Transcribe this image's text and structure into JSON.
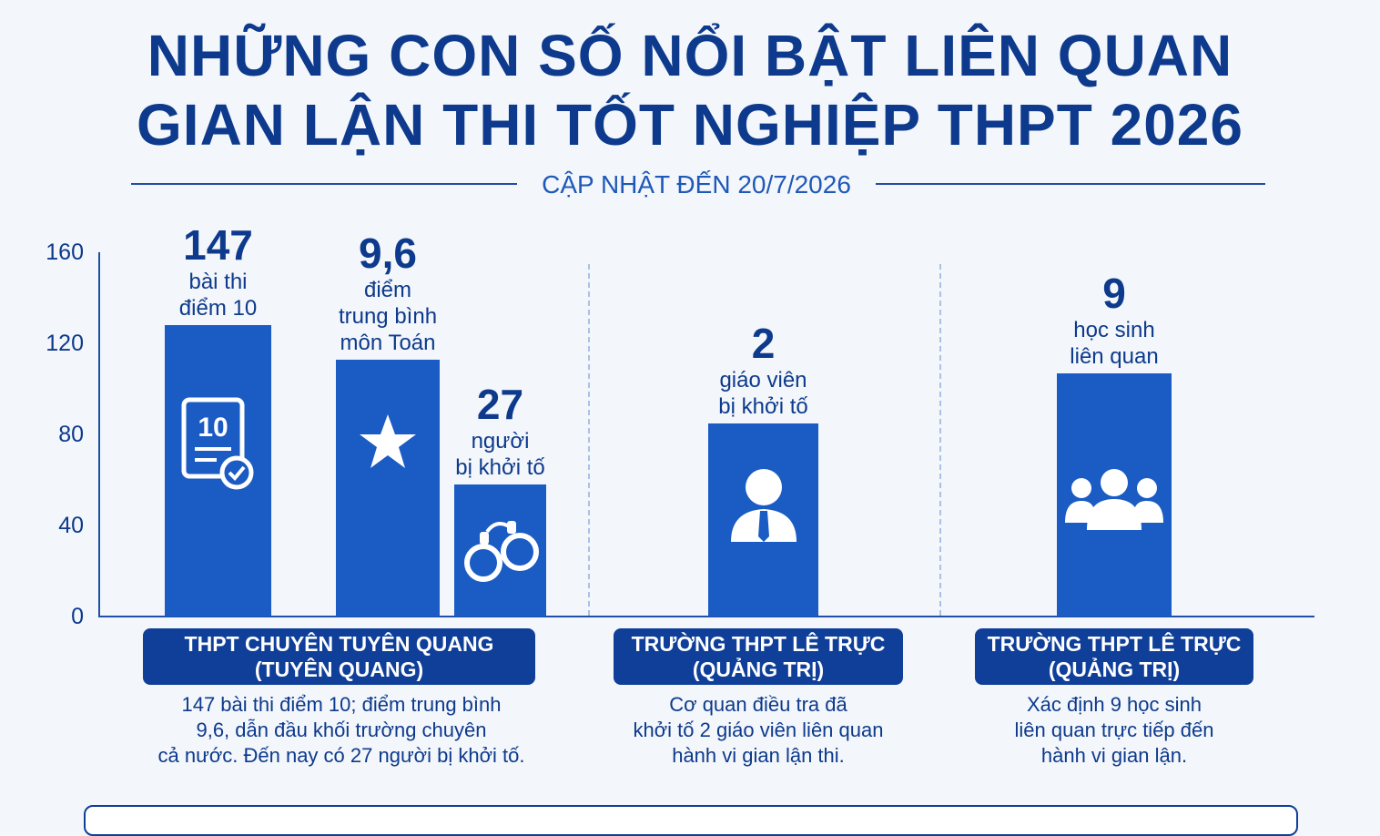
{
  "header": {
    "title_line1": "NHỮNG CON SỐ NỔI BẬT LIÊN QUAN",
    "title_line2": "GIAN LẬN THI TỐT NGHIỆP THPT 2026",
    "subtitle": "CẬP NHẬT ĐẾN 20/7/2026"
  },
  "chart_data": {
    "type": "bar",
    "ylim": [
      0,
      160
    ],
    "yticks": [
      "0",
      "40",
      "80",
      "120",
      "160"
    ],
    "grid": false,
    "bars": [
      {
        "value_label": "147",
        "text_line1": "bài thi",
        "text_line2": "điểm 10",
        "text_line3": "",
        "bar_height": 128,
        "icon": "exam-paper-check-icon"
      },
      {
        "value_label": "9,6",
        "text_line1": "điểm",
        "text_line2": "trung bình",
        "text_line3": "môn Toán",
        "bar_height": 113,
        "icon": "star-icon"
      },
      {
        "value_label": "27",
        "text_line1": "người",
        "text_line2": "bị khởi tố",
        "text_line3": "",
        "bar_height": 58,
        "icon": "handcuffs-icon"
      },
      {
        "value_label": "2",
        "text_line1": "giáo viên",
        "text_line2": "bị khởi tố",
        "text_line3": "",
        "bar_height": 85,
        "icon": "person-tie-icon"
      },
      {
        "value_label": "9",
        "text_line1": "học sinh",
        "text_line2": "liên quan",
        "text_line3": "",
        "bar_height": 107,
        "icon": "group-people-icon"
      }
    ],
    "groups": [
      {
        "pill_line1": "THPT CHUYÊN TUYÊN QUANG",
        "pill_line2": "(TUYÊN QUANG)",
        "desc_line1": "147 bài thi điểm 10; điểm trung bình",
        "desc_line2": "9,6, dẫn đầu khối trường chuyên",
        "desc_line3": "cả nước. Đến nay có 27 người bị khởi tố."
      },
      {
        "pill_line1": "TRƯỜNG THPT LÊ TRỰC",
        "pill_line2": "(QUẢNG TRỊ)",
        "desc_line1": "Cơ quan điều tra đã",
        "desc_line2": "khởi tố 2 giáo viên liên quan",
        "desc_line3": "hành vi gian lận thi."
      },
      {
        "pill_line1": "TRƯỜNG THPT LÊ TRỰC",
        "pill_line2": "(QUẢNG TRỊ)",
        "desc_line1": "Xác định 9 học sinh",
        "desc_line2": "liên quan trực tiếp đến",
        "desc_line3": "hành vi gian lận."
      }
    ]
  },
  "colors": {
    "title": "#0d3a8c",
    "bar": "#1a5bc4",
    "pill": "#0f3f99",
    "divider": "#a9c2e6"
  }
}
